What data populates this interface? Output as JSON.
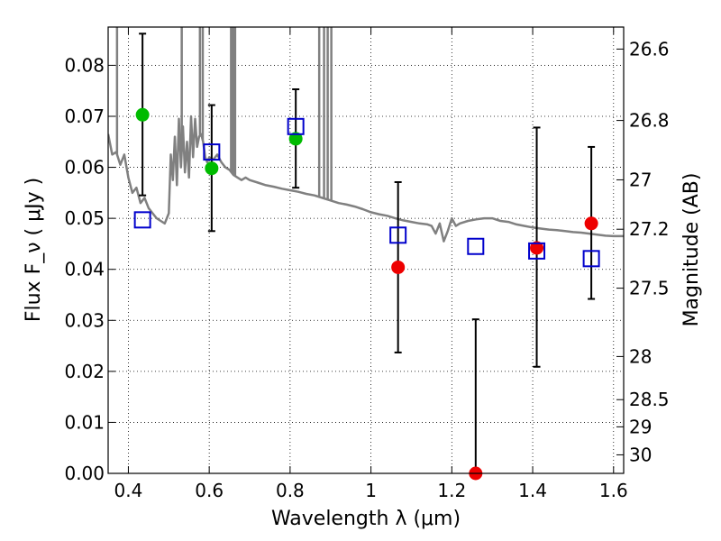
{
  "chart_data": {
    "type": "scatter",
    "title": "",
    "xlabel": "Wavelength  λ (μm)",
    "ylabel": "Flux  F_ν  ( μJy )",
    "y2label": "Magnitude (AB)",
    "xlim": [
      0.35,
      1.625
    ],
    "ylim": [
      0.0,
      0.0875
    ],
    "x_ticks": [
      0.4,
      0.6,
      0.8,
      1.0,
      1.2,
      1.4,
      1.6
    ],
    "x_tick_labels": [
      "0.4",
      "0.6",
      "0.8",
      "1",
      "1.2",
      "1.4",
      "1.6"
    ],
    "y_ticks": [
      0.0,
      0.01,
      0.02,
      0.03,
      0.04,
      0.05,
      0.06,
      0.07,
      0.08
    ],
    "y_tick_labels": [
      "0.00",
      "0.01",
      "0.02",
      "0.03",
      "0.04",
      "0.05",
      "0.06",
      "0.07",
      "0.08"
    ],
    "mag_ticks": [
      26.6,
      26.8,
      27.0,
      27.2,
      27.5,
      28.0,
      28.5,
      29.0,
      30.0
    ],
    "mag_tick_labels": [
      "26.6",
      "26.8",
      "27",
      "27.2",
      "27.5",
      "28",
      "28.5",
      "29",
      "30"
    ],
    "grid": true,
    "colors": {
      "model": "#808080",
      "detected": "#00bb00",
      "upper": "#ee0000",
      "template": "#0000cc",
      "errorbar": "#000000"
    },
    "series": [
      {
        "marker": "circle",
        "color": "#00bb00",
        "points": [
          {
            "x": 0.435,
            "y": 0.0703
          },
          {
            "x": 0.606,
            "y": 0.0598
          },
          {
            "x": 0.814,
            "y": 0.0656
          }
        ]
      },
      {
        "marker": "circle",
        "color": "#ee0000",
        "points": [
          {
            "x": 1.067,
            "y": 0.0404
          },
          {
            "x": 1.259,
            "y": 0.0
          },
          {
            "x": 1.41,
            "y": 0.0442
          },
          {
            "x": 1.545,
            "y": 0.049
          }
        ]
      },
      {
        "marker": "open-square",
        "color": "#0000cc",
        "points": [
          {
            "x": 0.435,
            "y": 0.0497
          },
          {
            "x": 0.606,
            "y": 0.063
          },
          {
            "x": 0.814,
            "y": 0.068
          },
          {
            "x": 1.067,
            "y": 0.0467
          },
          {
            "x": 1.259,
            "y": 0.0445
          },
          {
            "x": 1.41,
            "y": 0.0436
          },
          {
            "x": 1.545,
            "y": 0.0421
          }
        ]
      }
    ],
    "error_bars": [
      {
        "x": 0.435,
        "low": 0.0545,
        "high": 0.0862
      },
      {
        "x": 0.606,
        "low": 0.0475,
        "high": 0.0722
      },
      {
        "x": 0.814,
        "low": 0.056,
        "high": 0.0753
      },
      {
        "x": 1.067,
        "low": 0.0237,
        "high": 0.0571
      },
      {
        "x": 1.259,
        "low": 0.0,
        "high": 0.0302
      },
      {
        "x": 1.41,
        "low": 0.0209,
        "high": 0.0678
      },
      {
        "x": 1.545,
        "low": 0.0342,
        "high": 0.064
      }
    ],
    "model_spectrum": [
      [
        0.35,
        0.0665
      ],
      [
        0.36,
        0.0625
      ],
      [
        0.37,
        0.063
      ],
      [
        0.38,
        0.0605
      ],
      [
        0.39,
        0.0625
      ],
      [
        0.4,
        0.058
      ],
      [
        0.41,
        0.055
      ],
      [
        0.42,
        0.056
      ],
      [
        0.43,
        0.053
      ],
      [
        0.44,
        0.054
      ],
      [
        0.45,
        0.052
      ],
      [
        0.46,
        0.051
      ],
      [
        0.47,
        0.05
      ],
      [
        0.48,
        0.0495
      ],
      [
        0.49,
        0.049
      ],
      [
        0.5,
        0.051
      ],
      [
        0.505,
        0.0625
      ],
      [
        0.51,
        0.0575
      ],
      [
        0.515,
        0.066
      ],
      [
        0.52,
        0.0565
      ],
      [
        0.525,
        0.0695
      ],
      [
        0.53,
        0.06
      ],
      [
        0.535,
        0.068
      ],
      [
        0.54,
        0.059
      ],
      [
        0.545,
        0.065
      ],
      [
        0.55,
        0.058
      ],
      [
        0.555,
        0.07
      ],
      [
        0.56,
        0.062
      ],
      [
        0.565,
        0.0695
      ],
      [
        0.57,
        0.064
      ],
      [
        0.575,
        0.066
      ],
      [
        0.58,
        0.0665
      ],
      [
        0.585,
        0.065
      ],
      [
        0.59,
        0.062
      ],
      [
        0.595,
        0.061
      ],
      [
        0.6,
        0.062
      ],
      [
        0.61,
        0.0615
      ],
      [
        0.62,
        0.0625
      ],
      [
        0.63,
        0.061
      ],
      [
        0.64,
        0.06
      ],
      [
        0.65,
        0.0595
      ],
      [
        0.66,
        0.0585
      ],
      [
        0.67,
        0.058
      ],
      [
        0.68,
        0.0575
      ],
      [
        0.69,
        0.058
      ],
      [
        0.7,
        0.0575
      ],
      [
        0.72,
        0.057
      ],
      [
        0.74,
        0.0565
      ],
      [
        0.76,
        0.0562
      ],
      [
        0.78,
        0.0558
      ],
      [
        0.8,
        0.0555
      ],
      [
        0.82,
        0.0552
      ],
      [
        0.84,
        0.0548
      ],
      [
        0.86,
        0.0545
      ],
      [
        0.88,
        0.054
      ],
      [
        0.9,
        0.0535
      ],
      [
        0.92,
        0.053
      ],
      [
        0.94,
        0.0527
      ],
      [
        0.96,
        0.0523
      ],
      [
        0.98,
        0.0518
      ],
      [
        1.0,
        0.0512
      ],
      [
        1.02,
        0.0508
      ],
      [
        1.04,
        0.0505
      ],
      [
        1.06,
        0.05
      ],
      [
        1.08,
        0.0496
      ],
      [
        1.1,
        0.0493
      ],
      [
        1.12,
        0.049
      ],
      [
        1.14,
        0.0488
      ],
      [
        1.15,
        0.0485
      ],
      [
        1.16,
        0.047
      ],
      [
        1.17,
        0.049
      ],
      [
        1.18,
        0.0455
      ],
      [
        1.19,
        0.0475
      ],
      [
        1.2,
        0.05
      ],
      [
        1.21,
        0.0485
      ],
      [
        1.22,
        0.049
      ],
      [
        1.24,
        0.0495
      ],
      [
        1.26,
        0.0498
      ],
      [
        1.28,
        0.05
      ],
      [
        1.3,
        0.05
      ],
      [
        1.32,
        0.0495
      ],
      [
        1.34,
        0.0493
      ],
      [
        1.36,
        0.0488
      ],
      [
        1.38,
        0.0485
      ],
      [
        1.4,
        0.0482
      ],
      [
        1.42,
        0.048
      ],
      [
        1.44,
        0.0478
      ],
      [
        1.46,
        0.0477
      ],
      [
        1.48,
        0.0475
      ],
      [
        1.5,
        0.0473
      ],
      [
        1.52,
        0.0472
      ],
      [
        1.54,
        0.047
      ],
      [
        1.56,
        0.0468
      ],
      [
        1.58,
        0.0466
      ],
      [
        1.6,
        0.0465
      ],
      [
        1.625,
        0.0465
      ]
    ],
    "model_spikes": [
      0.372,
      0.532,
      0.577,
      0.584,
      0.654,
      0.658,
      0.661,
      0.664,
      0.872,
      0.884,
      0.893,
      0.902
    ]
  }
}
